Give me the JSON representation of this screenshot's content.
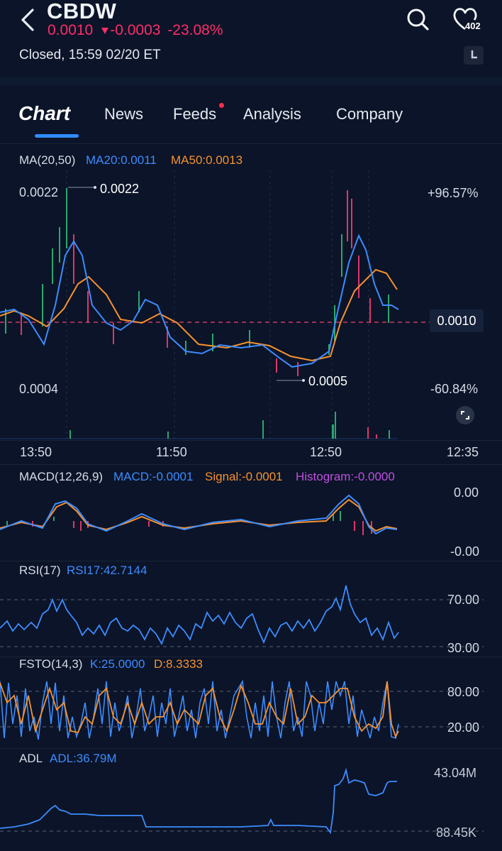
{
  "header": {
    "ticker": "CBDW",
    "price": "0.0010",
    "change": "-0.0003",
    "change_pct": "-23.08%",
    "status": "Closed, 15:59 02/20 ET",
    "watch_count": "402",
    "icons": [
      "back-icon",
      "search-icon",
      "heart-icon",
      "clock-icon"
    ]
  },
  "tabs": {
    "chart": "Chart",
    "news": "News",
    "feeds": "Feeds",
    "analysis": "Analysis",
    "company": "Company"
  },
  "main_chart": {
    "indicator": "MA(20,50)",
    "ma20": "MA20:0.0011",
    "ma50": "MA50:0.0013",
    "high_left": "0.0022",
    "high_marker": "0.0022",
    "low_left": "0.0004",
    "low_marker": "0.0005",
    "pct_top": "+96.57%",
    "pct_bottom": "-60.84%",
    "last_price": "0.0010",
    "time_labels": [
      "13:50",
      "11:50",
      "12:50",
      "12:35"
    ]
  },
  "macd": {
    "name": "MACD(12,26,9)",
    "macd": "MACD:-0.0001",
    "signal": "Signal:-0.0001",
    "histogram": "Histogram:-0.0000",
    "axis_top": "0.00",
    "axis_bottom": "-0.00"
  },
  "rsi": {
    "name": "RSI(17)",
    "value": "RSI17:42.7144",
    "axis_top": "70.00",
    "axis_bottom": "30.00"
  },
  "fsto": {
    "name": "FSTO(14,3)",
    "k": "K:25.0000",
    "d": "D:8.3333",
    "axis_top": "80.00",
    "axis_bottom": "20.00"
  },
  "adl": {
    "name": "ADL",
    "value": "ADL:36.79M",
    "axis_top": "43.04M",
    "axis_bottom": "88.45K"
  },
  "colors": {
    "background": "#0b1428",
    "down": "#ff2d6a",
    "accent_blue": "#3d8cff",
    "ma50_orange": "#f5922f",
    "histogram_purple": "#c04fe0"
  }
}
